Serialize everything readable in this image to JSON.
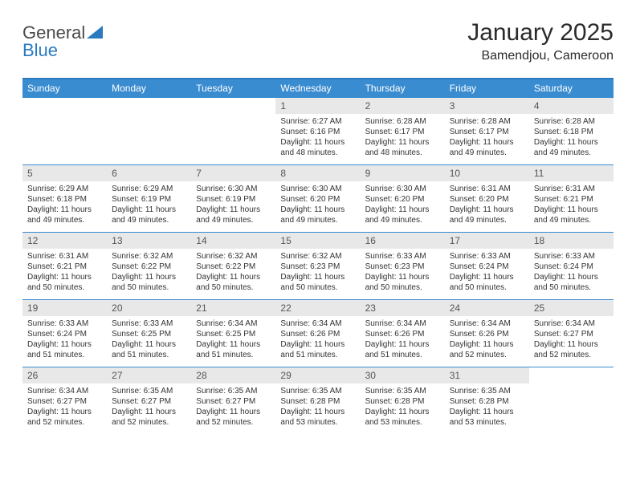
{
  "brand": {
    "word1": "General",
    "word2": "Blue"
  },
  "title": "January 2025",
  "location": "Bamendjou, Cameroon",
  "colors": {
    "header_bar": "#3a8cd0",
    "header_rule": "#2a7ac0",
    "daynum_bg": "#e8e8e8",
    "text": "#333333"
  },
  "days_of_week": [
    "Sunday",
    "Monday",
    "Tuesday",
    "Wednesday",
    "Thursday",
    "Friday",
    "Saturday"
  ],
  "start_day_index": 3,
  "days": [
    {
      "n": 1,
      "sunrise": "6:27 AM",
      "sunset": "6:16 PM",
      "daylight": "11 hours and 48 minutes."
    },
    {
      "n": 2,
      "sunrise": "6:28 AM",
      "sunset": "6:17 PM",
      "daylight": "11 hours and 48 minutes."
    },
    {
      "n": 3,
      "sunrise": "6:28 AM",
      "sunset": "6:17 PM",
      "daylight": "11 hours and 49 minutes."
    },
    {
      "n": 4,
      "sunrise": "6:28 AM",
      "sunset": "6:18 PM",
      "daylight": "11 hours and 49 minutes."
    },
    {
      "n": 5,
      "sunrise": "6:29 AM",
      "sunset": "6:18 PM",
      "daylight": "11 hours and 49 minutes."
    },
    {
      "n": 6,
      "sunrise": "6:29 AM",
      "sunset": "6:19 PM",
      "daylight": "11 hours and 49 minutes."
    },
    {
      "n": 7,
      "sunrise": "6:30 AM",
      "sunset": "6:19 PM",
      "daylight": "11 hours and 49 minutes."
    },
    {
      "n": 8,
      "sunrise": "6:30 AM",
      "sunset": "6:20 PM",
      "daylight": "11 hours and 49 minutes."
    },
    {
      "n": 9,
      "sunrise": "6:30 AM",
      "sunset": "6:20 PM",
      "daylight": "11 hours and 49 minutes."
    },
    {
      "n": 10,
      "sunrise": "6:31 AM",
      "sunset": "6:20 PM",
      "daylight": "11 hours and 49 minutes."
    },
    {
      "n": 11,
      "sunrise": "6:31 AM",
      "sunset": "6:21 PM",
      "daylight": "11 hours and 49 minutes."
    },
    {
      "n": 12,
      "sunrise": "6:31 AM",
      "sunset": "6:21 PM",
      "daylight": "11 hours and 50 minutes."
    },
    {
      "n": 13,
      "sunrise": "6:32 AM",
      "sunset": "6:22 PM",
      "daylight": "11 hours and 50 minutes."
    },
    {
      "n": 14,
      "sunrise": "6:32 AM",
      "sunset": "6:22 PM",
      "daylight": "11 hours and 50 minutes."
    },
    {
      "n": 15,
      "sunrise": "6:32 AM",
      "sunset": "6:23 PM",
      "daylight": "11 hours and 50 minutes."
    },
    {
      "n": 16,
      "sunrise": "6:33 AM",
      "sunset": "6:23 PM",
      "daylight": "11 hours and 50 minutes."
    },
    {
      "n": 17,
      "sunrise": "6:33 AM",
      "sunset": "6:24 PM",
      "daylight": "11 hours and 50 minutes."
    },
    {
      "n": 18,
      "sunrise": "6:33 AM",
      "sunset": "6:24 PM",
      "daylight": "11 hours and 50 minutes."
    },
    {
      "n": 19,
      "sunrise": "6:33 AM",
      "sunset": "6:24 PM",
      "daylight": "11 hours and 51 minutes."
    },
    {
      "n": 20,
      "sunrise": "6:33 AM",
      "sunset": "6:25 PM",
      "daylight": "11 hours and 51 minutes."
    },
    {
      "n": 21,
      "sunrise": "6:34 AM",
      "sunset": "6:25 PM",
      "daylight": "11 hours and 51 minutes."
    },
    {
      "n": 22,
      "sunrise": "6:34 AM",
      "sunset": "6:26 PM",
      "daylight": "11 hours and 51 minutes."
    },
    {
      "n": 23,
      "sunrise": "6:34 AM",
      "sunset": "6:26 PM",
      "daylight": "11 hours and 51 minutes."
    },
    {
      "n": 24,
      "sunrise": "6:34 AM",
      "sunset": "6:26 PM",
      "daylight": "11 hours and 52 minutes."
    },
    {
      "n": 25,
      "sunrise": "6:34 AM",
      "sunset": "6:27 PM",
      "daylight": "11 hours and 52 minutes."
    },
    {
      "n": 26,
      "sunrise": "6:34 AM",
      "sunset": "6:27 PM",
      "daylight": "11 hours and 52 minutes."
    },
    {
      "n": 27,
      "sunrise": "6:35 AM",
      "sunset": "6:27 PM",
      "daylight": "11 hours and 52 minutes."
    },
    {
      "n": 28,
      "sunrise": "6:35 AM",
      "sunset": "6:27 PM",
      "daylight": "11 hours and 52 minutes."
    },
    {
      "n": 29,
      "sunrise": "6:35 AM",
      "sunset": "6:28 PM",
      "daylight": "11 hours and 53 minutes."
    },
    {
      "n": 30,
      "sunrise": "6:35 AM",
      "sunset": "6:28 PM",
      "daylight": "11 hours and 53 minutes."
    },
    {
      "n": 31,
      "sunrise": "6:35 AM",
      "sunset": "6:28 PM",
      "daylight": "11 hours and 53 minutes."
    }
  ],
  "labels": {
    "sunrise": "Sunrise:",
    "sunset": "Sunset:",
    "daylight": "Daylight:"
  }
}
